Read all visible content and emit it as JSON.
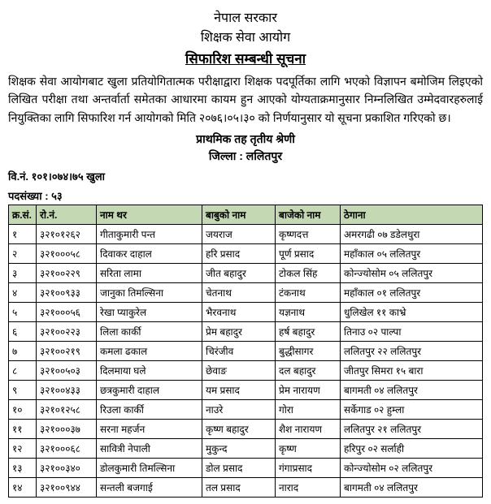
{
  "header": {
    "gov": "नेपाल सरकार",
    "org": "शिक्षक सेवा आयोग",
    "notice_title": "सिफारिश सम्बन्धी सूचना"
  },
  "paragraph": "शिक्षक सेवा आयोगबाट खुला प्रतियोगितात्मक परीक्षाद्वारा शिक्षक पदपूर्तिका लागि भएको विज्ञापन बमोजिम लिइएको लिखित परीक्षा तथा अन्तर्वार्ता समेतका आधारमा कायम हुन आएको योग्यताक्रमानुसार निम्नलिखित उम्मेदवारहरुलाई नियुक्तिका लागि सिफारिश गर्न आयोगको मिति २०७६।०५।३० को निर्णयानुसार यो सूचना प्रकाशित गरिएको छ।",
  "subheader": {
    "level": "प्राथमिक तह तृतीय श्रेणी",
    "district": "जिल्ला : ललितपुर"
  },
  "meta": {
    "adv_no": "वि.नं. १०१।०७४।७५ खुला",
    "seat_count": "पदसंख्या : ५३"
  },
  "table": {
    "header_bg": "#c3d8b3",
    "columns": [
      "क्र.सं.",
      "रो.नं.",
      "नाम थर",
      "बाबुको नाम",
      "बाजेको नाम",
      "ठेगाना"
    ],
    "rows": [
      [
        "१",
        "३२१०१२६२",
        "गीताकुमारी पन्त",
        "जयराज",
        "कृष्णदत्त",
        "अमरगढी ०७ डडेलधुरा"
      ],
      [
        "२",
        "३२१०००५८",
        "दिवाकर दाहाल",
        "हरि प्रसाद",
        "पूर्ण प्रसाद",
        "महाँकाल ०५ ललितपुर"
      ],
      [
        "३",
        "३२१००२२९",
        "सरिता लामा",
        "जीत बहादुर",
        "टोकल सिंह",
        "कोन्ज्योसोम ०५ ललितपुर"
      ],
      [
        "४",
        "३२१००९३३",
        "जानुका तिमल्सिना",
        "चेतनाथ",
        "टंकनाथ",
        "महाँकाल ०१ ललितपुर"
      ],
      [
        "५",
        "३२१०००५६",
        "रेखा प्याकुरेल",
        "भैरवनाथ",
        "यज्ञनाथ",
        "धुलिखेल ११ काभ्रे"
      ],
      [
        "६",
        "३२१००२२३",
        "लिला कार्की",
        "प्रेम बहादुर",
        "हर्ष बहादुर",
        "तिनाउ ०२ पाल्पा"
      ],
      [
        "७",
        "३२१००२१९",
        "कमला ढकाल",
        "चिरंजीव",
        "बुद्धीसागर",
        "ललितपुर २२ ललितपुर"
      ],
      [
        "८",
        "३२१००५०३",
        "दिलमाया घले",
        "छेवाङ",
        "दल बहादुर",
        "जीतपुर सिमरा १५ बारा"
      ],
      [
        "९",
        "३२१००४३३",
        "छत्रकुमारी दाहाल",
        "यम प्रसाद",
        "प्रेम नारायण",
        "बागमती ०४ ललितपुर"
      ],
      [
        "१०",
        "३२१०१२५८",
        "रिउला कार्की",
        "नाउरे",
        "गोरा",
        "सर्केगाड ०२ हुम्ला"
      ],
      [
        "११",
        "३२१०००३७",
        "सरना महर्जन",
        "कृष्ण बहादुर",
        "शैश नारायण",
        "ललितपुर २१ ललितपुर"
      ],
      [
        "१२",
        "३२१०००६८",
        "सावित्री नेपाली",
        "मुकुन्द",
        "कृष्ण",
        "हरिपुर ०२ सर्लाही"
      ],
      [
        "१३",
        "३२१००३४०",
        "डोलकुमारी तिमल्सिना",
        "डोल प्रसाद",
        "गंगाप्रसाद",
        "कोन्ज्योसोम ०२ ललितपुर"
      ],
      [
        "१४",
        "३२१००९४४",
        "सन्तली बजगाई",
        "तल प्रसाद",
        "नाराद",
        "बागमती ०४ ललितपुर"
      ]
    ]
  }
}
